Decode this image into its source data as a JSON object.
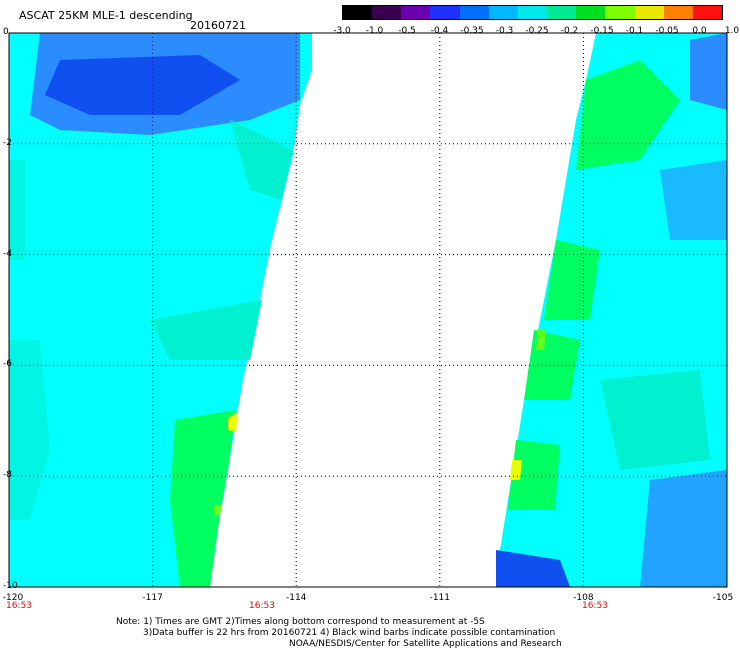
{
  "header": {
    "title": "ASCAT 25KM MLE-1 descending",
    "date": "20160721"
  },
  "colorbar": {
    "labels": [
      "-3.0",
      "-1.0",
      "-0.5",
      "-0.4",
      "-0.35",
      "-0.3",
      "-0.25",
      "-0.2",
      "-0.15",
      "-0.1",
      "-0.05",
      "0.0",
      "1.0"
    ],
    "colors": [
      "#000000",
      "#3a0050",
      "#6a00b0",
      "#2030ff",
      "#0070ff",
      "#00b8ff",
      "#00e8e8",
      "#00e890",
      "#00e020",
      "#80ff00",
      "#e8e800",
      "#ff8000",
      "#ff1010"
    ]
  },
  "axes": {
    "y_ticks": [
      "0",
      "-2",
      "-4",
      "-6",
      "-8",
      "-10"
    ],
    "x_ticks": [
      "-120",
      "-117",
      "-114",
      "-111",
      "-108",
      "-105"
    ],
    "time_labels": [
      "16:53",
      "16:53",
      "16:53"
    ]
  },
  "notes": {
    "line1": "Note: 1) Times are GMT 2)Times along bottom correspond to measurement at -5S",
    "line2": "3)Data buffer is 22 hrs from 20160721 4) Black wind barbs indicate possible contamination",
    "line3": "NOAA/NESDIS/Center for Satellite Applications and Research"
  },
  "map_data": {
    "lat_range": [
      -10,
      0
    ],
    "lon_range": [
      -120,
      -105
    ],
    "swath_colors": {
      "deep_blue": "#1050f0",
      "blue": "#2a8cff",
      "cyan": "#00ffff",
      "aqua": "#00f0d0",
      "green": "#00ff60",
      "lime": "#60ff20",
      "yellow": "#e8ff00"
    }
  }
}
